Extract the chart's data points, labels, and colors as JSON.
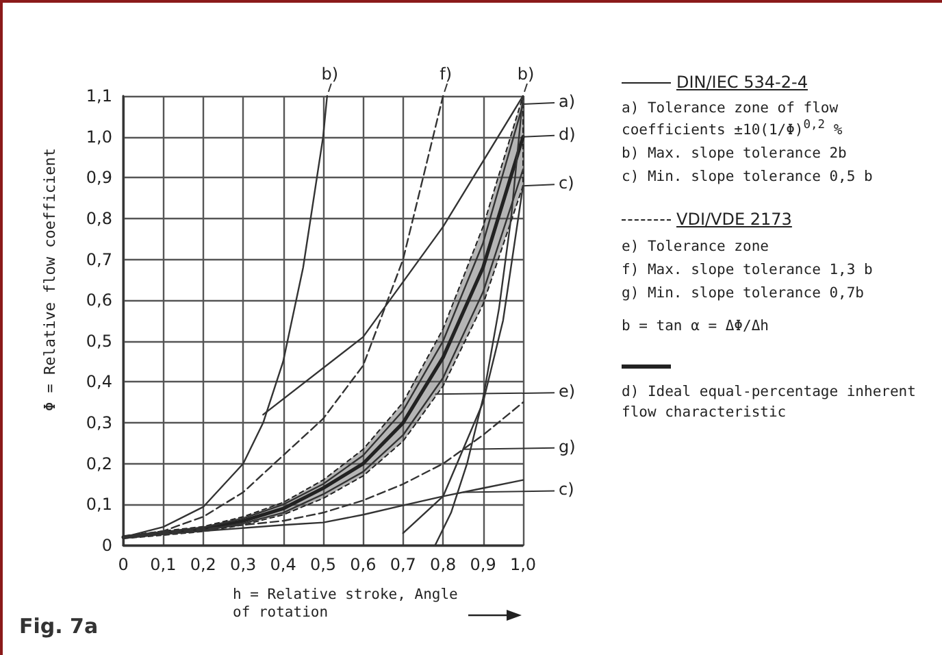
{
  "chart_data": {
    "type": "line",
    "title": "Fig. 7a",
    "xlabel": "h = Relative stroke, Angle of rotation",
    "ylabel": "Φ = Relative flow coefficient",
    "xlim": [
      0,
      1
    ],
    "ylim": [
      0,
      1.1
    ],
    "xticks": [
      0,
      {
        "value": 0.1,
        "label": "0,1"
      },
      {
        "value": 0.2,
        "label": "0,2"
      },
      {
        "value": 0.3,
        "label": "0,3"
      },
      {
        "value": 0.4,
        "label": "0,4"
      },
      {
        "value": 0.5,
        "label": "0,5"
      },
      {
        "value": 0.6,
        "label": "0,6"
      },
      {
        "value": 0.7,
        "label": "0,7"
      },
      {
        "value": 0.8,
        "label": "0,8"
      },
      {
        "value": 0.9,
        "label": "0,9"
      },
      {
        "value": 1,
        "label": "1,0"
      }
    ],
    "yticks": [
      0,
      {
        "value": 0.1,
        "label": "0,1"
      },
      {
        "value": 0.2,
        "label": "0,2"
      },
      {
        "value": 0.3,
        "label": "0,3"
      },
      {
        "value": 0.4,
        "label": "0,4"
      },
      {
        "value": 0.5,
        "label": "0,5"
      },
      {
        "value": 0.6,
        "label": "0,6"
      },
      {
        "value": 0.7,
        "label": "0,7"
      },
      {
        "value": 0.8,
        "label": "0,8"
      },
      {
        "value": 0.9,
        "label": "0,9"
      },
      {
        "value": 1,
        "label": "1,0"
      },
      {
        "value": 1.1,
        "label": "1,1"
      }
    ],
    "grid": true,
    "marker": "none",
    "series": [
      {
        "color": "#222222",
        "line_style": "solid",
        "x": [
          0,
          0.1,
          0.2,
          0.3,
          0.4,
          0.5,
          0.6,
          0.7,
          0.8,
          0.9,
          1
        ],
        "values": [
          0.02,
          0.03,
          0.04,
          0.06,
          0.09,
          0.14,
          0.2,
          0.3,
          0.46,
          0.68,
          1.0
        ],
        "lower": [
          0.017,
          0.025,
          0.034,
          0.05,
          0.075,
          0.115,
          0.17,
          0.255,
          0.39,
          0.59,
          0.88
        ],
        "upper": [
          0.023,
          0.035,
          0.046,
          0.07,
          0.105,
          0.16,
          0.235,
          0.35,
          0.53,
          0.78,
          1.1
        ]
      },
      {
        "color": "#333333",
        "line_style": "solid",
        "x": [
          0,
          0.1,
          0.2,
          0.3,
          0.4,
          0.5,
          0.6,
          0.7,
          0.8,
          0.9,
          1
        ],
        "values": [
          0.022,
          0.033,
          0.044,
          0.066,
          0.1,
          0.15,
          0.22,
          0.33,
          0.5,
          0.74,
          1.08
        ]
      },
      {
        "color": "#333333",
        "line_style": "solid",
        "x": [
          0,
          0.1,
          0.2,
          0.3,
          0.4,
          0.5,
          0.6,
          0.7,
          0.8,
          0.9,
          1
        ],
        "values": [
          0.018,
          0.027,
          0.036,
          0.054,
          0.08,
          0.125,
          0.18,
          0.27,
          0.41,
          0.62,
          0.92
        ]
      },
      {
        "color": "#333333",
        "line_style": "solid",
        "x": [
          0,
          0.1,
          0.2,
          0.3,
          0.35,
          0.4,
          0.45,
          0.5,
          0.51
        ],
        "values": [
          0.02,
          0.045,
          0.094,
          0.2,
          0.3,
          0.45,
          0.68,
          1.0,
          1.1
        ]
      },
      {
        "color": "#333333",
        "line_style": "solid",
        "x": [
          0.78,
          0.82,
          0.86,
          0.9,
          0.94,
          0.97,
          1
        ],
        "values": [
          0,
          0.08,
          0.2,
          0.36,
          0.58,
          0.8,
          1.1
        ]
      },
      {
        "color": "#333333",
        "line_style": "solid",
        "x": [
          0.35,
          0.6,
          0.8,
          1
        ],
        "values": [
          0.32,
          0.51,
          0.78,
          1.1
        ]
      },
      {
        "color": "#333333",
        "line_style": "solid",
        "x": [
          0,
          0.2,
          0.4,
          0.5,
          0.6,
          0.7,
          0.8,
          0.9,
          1
        ],
        "values": [
          0.02,
          0.035,
          0.05,
          0.056,
          0.075,
          0.098,
          0.12,
          0.14,
          0.16
        ]
      },
      {
        "color": "#333333",
        "line_style": "solid",
        "x": [
          0.7,
          0.8,
          0.9,
          0.95,
          1
        ],
        "values": [
          0.03,
          0.12,
          0.35,
          0.55,
          0.88
        ]
      },
      {
        "color": "#333333",
        "line_style": "dashed",
        "x": [
          0,
          0.1,
          0.2,
          0.3,
          0.4,
          0.5,
          0.6,
          0.7,
          0.8
        ],
        "values": [
          0.02,
          0.035,
          0.07,
          0.13,
          0.22,
          0.31,
          0.44,
          0.7,
          1.1
        ]
      },
      {
        "color": "#333333",
        "line_style": "dashed",
        "x": [
          0,
          0.2,
          0.4,
          0.5,
          0.6,
          0.7,
          0.8,
          0.9,
          1
        ],
        "values": [
          0.02,
          0.04,
          0.06,
          0.08,
          0.11,
          0.15,
          0.2,
          0.27,
          0.35
        ]
      }
    ],
    "annotations": [
      "DIN/IEC 534-2-4",
      "a) Tolerance zone of flow coefficients ±10(1/Φ)$^{0,2}$ %",
      "b) Max. slope tolerance 2b",
      "c) Min. slope tolerance 0,5 b",
      "VDI/VDE 2173",
      "e) Tolerance zone",
      "f) Max. slope tolerance 1,3 b",
      "g) Min. slope tolerance 0,7b",
      "b = tan α = ΔΦ/Δh",
      "d) Ideal equal-percentage inherent flow characteristic",
      {
        "text": "b)",
        "x": 0.51,
        "y": 1.1
      },
      {
        "text": "f)",
        "x": 0.8,
        "y": 1.1
      },
      {
        "text": "b)",
        "x": 1,
        "y": 1.1
      },
      {
        "text": "a)",
        "x": 1,
        "y": 1.08
      },
      {
        "text": "d)",
        "x": 1,
        "y": 1.0
      },
      {
        "text": "c)",
        "x": 1,
        "y": 0.88
      },
      {
        "text": "e)",
        "x": 0.78,
        "y": 0.37
      },
      {
        "text": "g)",
        "x": 0.85,
        "y": 0.235
      },
      {
        "text": "c)",
        "x": 0.85,
        "y": 0.13
      }
    ]
  }
}
